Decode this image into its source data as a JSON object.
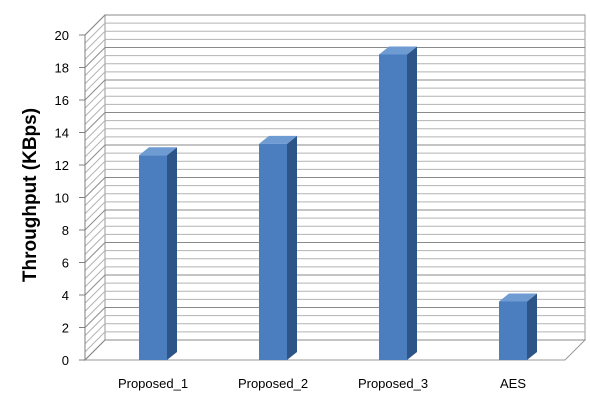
{
  "chart_data": {
    "type": "bar",
    "title": "",
    "xlabel": "",
    "ylabel": "Throughput (KBps)",
    "categories": [
      "Proposed_1",
      "Proposed_2",
      "Proposed_3",
      "AES"
    ],
    "values": [
      12.6,
      13.3,
      18.8,
      3.6
    ],
    "ylim": [
      0,
      20
    ],
    "yticks": [
      "0",
      "2",
      "4",
      "6",
      "8",
      "10",
      "12",
      "14",
      "16",
      "18",
      "20"
    ],
    "grid": true,
    "legend": "none",
    "colors": {
      "bar_front": "#4a7ebf",
      "bar_side": "#2e5587",
      "bar_top": "#6f9bd3",
      "grid": "#999999"
    }
  }
}
